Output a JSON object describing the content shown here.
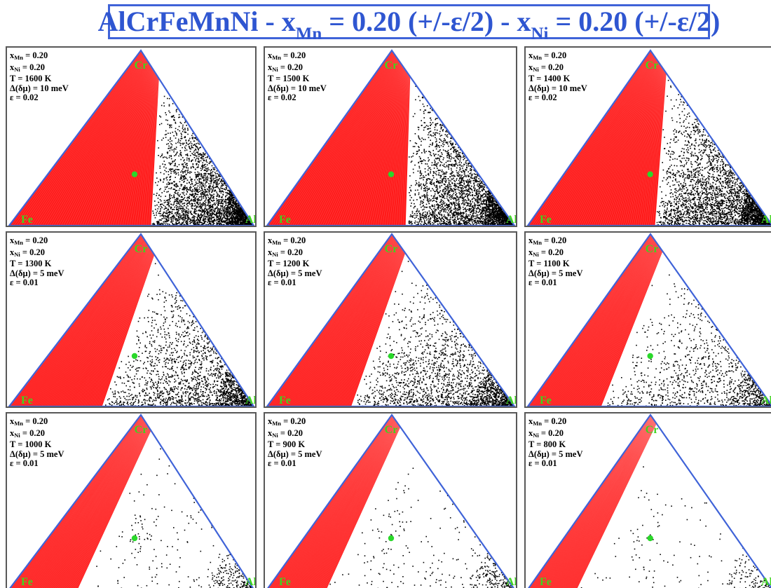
{
  "title": {
    "prefix": "AlCrFeMnNi - x",
    "sub1": "Mn",
    "mid": " = 0.20 (+/-ε/2) - x",
    "sub2": "Ni",
    "suffix": " = 0.20 (+/-ε/2)"
  },
  "colors": {
    "title": "#2f56d1",
    "triangle_edge": "#3f63d8",
    "red_phase": "#ff1a1a",
    "black_phase": "#000000",
    "composition_point": "#2ad82a",
    "corner_labels": "#3fd41e"
  },
  "corners": {
    "top": "Cr",
    "left": "Fe",
    "right": "Al"
  },
  "panels": [
    {
      "xMn": "0.20",
      "xNi": "0.20",
      "T": "T = 1600 K",
      "dmu": "Δ(δμ) = 10 meV",
      "eps": "ε = 0.02",
      "boundary_top": 0.16,
      "boundary_bottom": 0.58,
      "black_density": "dense"
    },
    {
      "xMn": "0.20",
      "xNi": "0.20",
      "T": "T = 1500 K",
      "dmu": "Δ(δμ) = 10 meV",
      "eps": "ε = 0.02",
      "boundary_top": 0.15,
      "boundary_bottom": 0.56,
      "black_density": "dense"
    },
    {
      "xMn": "0.20",
      "xNi": "0.20",
      "T": "T = 1400 K",
      "dmu": "Δ(δμ) = 10 meV",
      "eps": "ε = 0.02",
      "boundary_top": 0.13,
      "boundary_bottom": 0.52,
      "black_density": "dense"
    },
    {
      "xMn": "0.20",
      "xNi": "0.20",
      "T": "T = 1300 K",
      "dmu": "Δ(δμ) = 5 meV",
      "eps": "ε = 0.01",
      "boundary_top": 0.12,
      "boundary_bottom": 0.38,
      "black_density": "medium"
    },
    {
      "xMn": "0.20",
      "xNi": "0.20",
      "T": "T = 1200 K",
      "dmu": "Δ(δμ) = 5 meV",
      "eps": "ε = 0.01",
      "boundary_top": 0.11,
      "boundary_bottom": 0.34,
      "black_density": "medium"
    },
    {
      "xMn": "0.20",
      "xNi": "0.20",
      "T": "T = 1100 K",
      "dmu": "Δ(δμ) = 5 meV",
      "eps": "ε = 0.01",
      "boundary_top": 0.1,
      "boundary_bottom": 0.3,
      "black_density": "light"
    },
    {
      "xMn": "0.20",
      "xNi": "0.20",
      "T": "T = 1000 K",
      "dmu": "Δ(δμ) = 5 meV",
      "eps": "ε = 0.01",
      "boundary_top": 0.09,
      "boundary_bottom": 0.28,
      "black_density": "sparse"
    },
    {
      "xMn": "0.20",
      "xNi": "0.20",
      "T": "T = 900 K",
      "dmu": "Δ(δμ) = 5 meV",
      "eps": "ε = 0.01",
      "boundary_top": 0.07,
      "boundary_bottom": 0.24,
      "black_density": "sparse"
    },
    {
      "xMn": "0.20",
      "xNi": "0.20",
      "T": "T = 800 K",
      "dmu": "Δ(δμ) = 5 meV",
      "eps": "ε = 0.01",
      "boundary_top": 0.05,
      "boundary_bottom": 0.2,
      "black_density": "very-sparse"
    }
  ]
}
